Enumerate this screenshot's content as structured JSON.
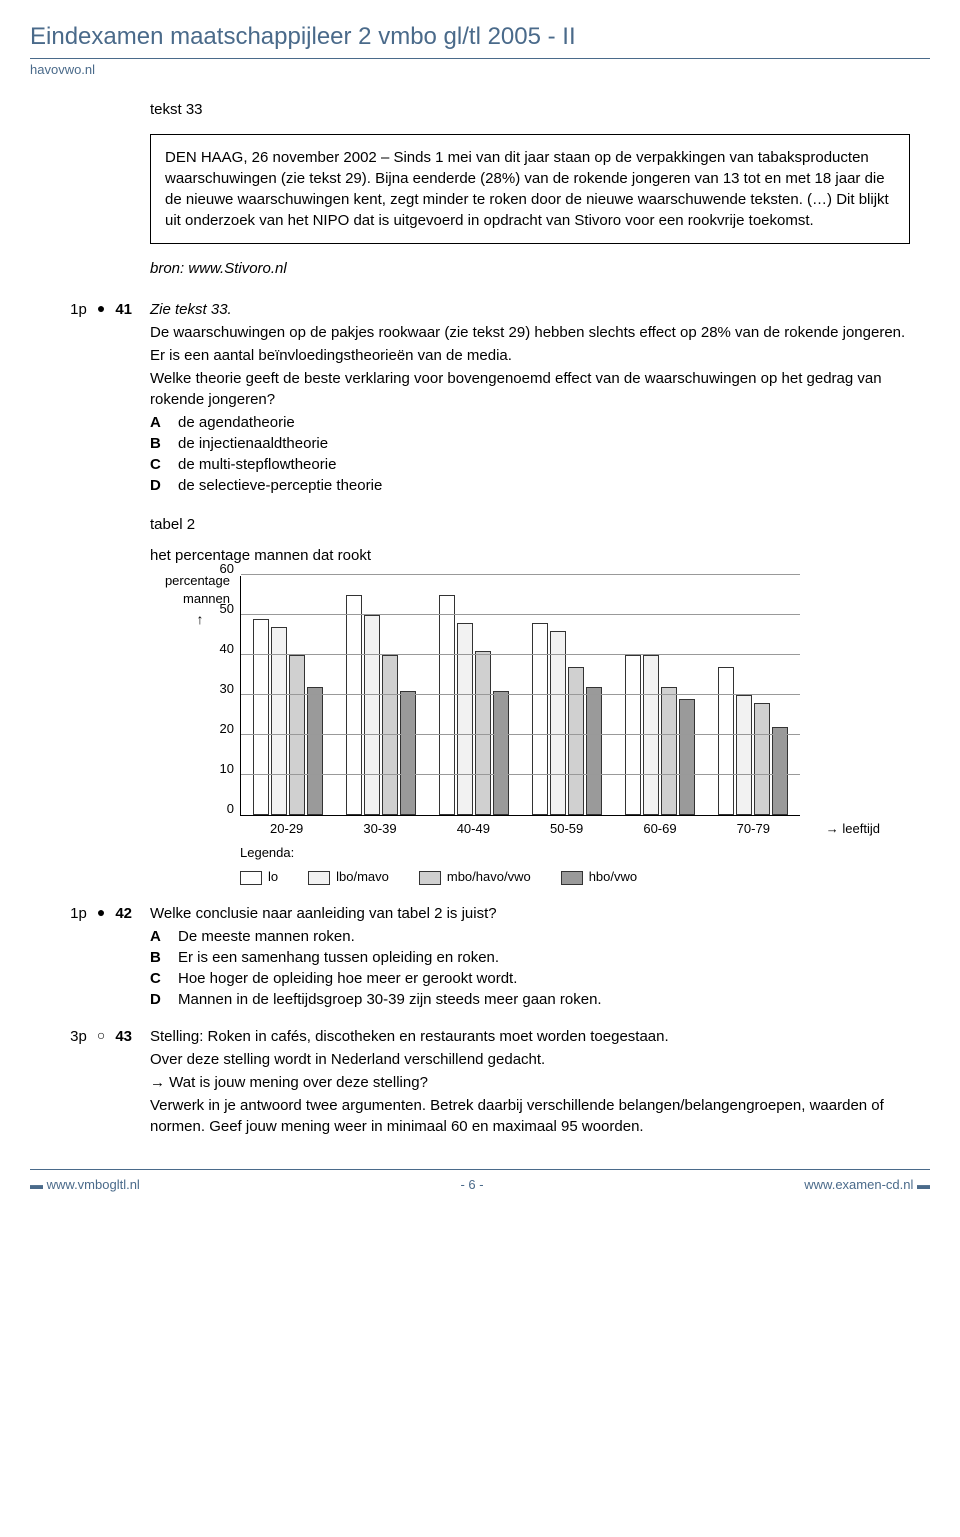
{
  "header": {
    "title": "Eindexamen maatschappijleer 2 vmbo gl/tl  2005 - II",
    "site": "havovwo.nl"
  },
  "tekst_label": "tekst 33",
  "box_text": "DEN HAAG, 26 november 2002 – Sinds 1 mei van dit jaar staan op de verpakkingen van tabaksproducten waarschuwingen (zie tekst 29). Bijna eenderde (28%) van de rokende jongeren van 13 tot en met 18 jaar die de nieuwe waarschuwingen kent, zegt minder te roken door de nieuwe waarschuwende teksten. (…) Dit blijkt uit onderzoek van het NIPO dat is uitgevoerd in opdracht van Stivoro voor een rookvrije toekomst.",
  "bron": "bron: www.Stivoro.nl",
  "q41": {
    "pts": "1p",
    "bullet": "●",
    "num": "41",
    "intro": "Zie tekst 33.",
    "l1": "De waarschuwingen op de pakjes rookwaar (zie tekst 29) hebben slechts effect op 28% van de rokende jongeren.",
    "l2": "Er is een aantal beïnvloedingstheorieën van de media.",
    "l3": "Welke theorie geeft de beste verklaring voor bovengenoemd effect van de waarschuwingen op het gedrag van rokende jongeren?",
    "A": "de agendatheorie",
    "B": "de injectienaaldtheorie",
    "C": "de multi-stepflowtheorie",
    "D": "de selectieve-perceptie theorie"
  },
  "tabel_label": "tabel 2",
  "chart": {
    "title": "het percentage mannen dat rookt",
    "ylabel1": "percentage",
    "ylabel2": "mannen",
    "ymax": 60,
    "ytick_step": 10,
    "yticks": [
      60,
      50,
      40,
      30,
      20,
      10,
      0
    ],
    "categories": [
      "20-29",
      "30-39",
      "40-49",
      "50-59",
      "60-69",
      "70-79"
    ],
    "series": [
      {
        "name": "lo",
        "color": "#ffffff"
      },
      {
        "name": "lbo/mavo",
        "color": "#f2f2f2"
      },
      {
        "name": "mbo/havo/vwo",
        "color": "#d0d0d0"
      },
      {
        "name": "hbo/vwo",
        "color": "#9a9a9a"
      }
    ],
    "values": [
      [
        49,
        47,
        40,
        32
      ],
      [
        55,
        50,
        40,
        31
      ],
      [
        55,
        48,
        41,
        31
      ],
      [
        48,
        46,
        37,
        32
      ],
      [
        40,
        40,
        32,
        29
      ],
      [
        37,
        30,
        28,
        22
      ]
    ],
    "xlabel": "leeftijd",
    "legend_label": "Legenda:",
    "grid_color": "#999999"
  },
  "q42": {
    "pts": "1p",
    "bullet": "●",
    "num": "42",
    "l1": "Welke conclusie naar aanleiding van tabel 2 is juist?",
    "A": "De meeste mannen roken.",
    "B": "Er is een samenhang tussen opleiding en roken.",
    "C": "Hoe hoger de opleiding hoe meer er gerookt wordt.",
    "D": "Mannen in de leeftijdsgroep 30-39 zijn steeds meer gaan roken."
  },
  "q43": {
    "pts": "3p",
    "bullet": "○",
    "num": "43",
    "l1": "Stelling: Roken in cafés, discotheken en restaurants moet worden toegestaan.",
    "l2": "Over deze stelling wordt in Nederland verschillend gedacht.",
    "l3": "Wat is jouw mening over deze stelling?",
    "l4": "Verwerk in je antwoord twee argumenten. Betrek daarbij verschillende belangen/belangengroepen, waarden of normen. Geef jouw mening weer in minimaal 60 en maximaal 95 woorden.",
    "arrow": "→"
  },
  "footer": {
    "left": "www.vmbogltl.nl",
    "center": "- 6 -",
    "right": "www.examen-cd.nl",
    "dash": "▬"
  }
}
